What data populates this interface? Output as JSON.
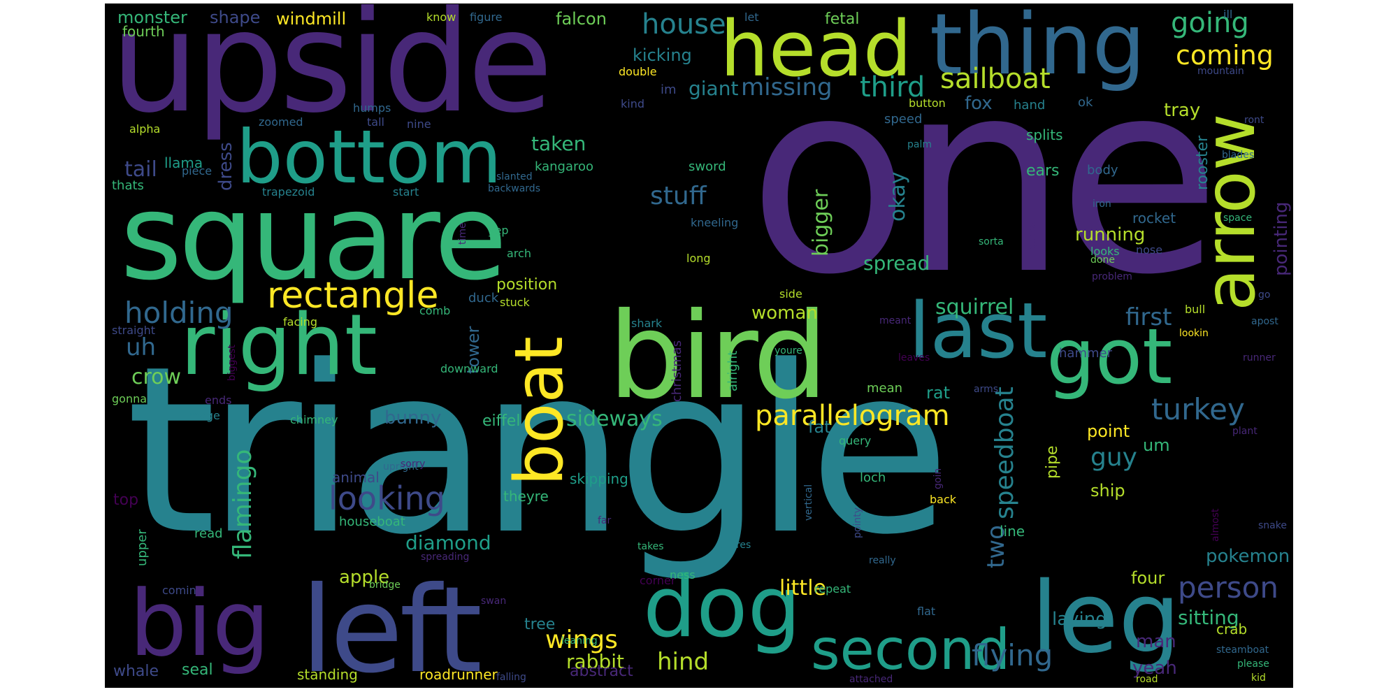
{
  "colors": {
    "background": "#000000",
    "page": "#ffffff",
    "palette": [
      "#440154",
      "#482878",
      "#3e4a89",
      "#31688e",
      "#26828e",
      "#1f9e89",
      "#35b779",
      "#6ece58",
      "#b5de2b",
      "#fde725"
    ]
  },
  "words": [
    {
      "text": "one",
      "color": "#482878"
    },
    {
      "text": "triangle",
      "color": "#26828e"
    },
    {
      "text": "upside",
      "color": "#482878"
    },
    {
      "text": "square",
      "color": "#35b779"
    },
    {
      "text": "head",
      "color": "#b5de2b"
    },
    {
      "text": "thing",
      "color": "#31688e"
    },
    {
      "text": "bird",
      "color": "#6ece58"
    },
    {
      "text": "bottom",
      "color": "#1f9e89"
    },
    {
      "text": "right",
      "color": "#35b779"
    },
    {
      "text": "left",
      "color": "#3e4a89"
    },
    {
      "text": "big",
      "color": "#482878"
    },
    {
      "text": "leg",
      "color": "#26828e"
    },
    {
      "text": "last",
      "color": "#26828e"
    },
    {
      "text": "got",
      "color": "#35b779"
    },
    {
      "text": "dog",
      "color": "#1f9e89"
    },
    {
      "text": "arrow",
      "color": "#b5de2b"
    },
    {
      "text": "boat",
      "color": "#fde725"
    },
    {
      "text": "second",
      "color": "#1f9e89"
    },
    {
      "text": "rectangle",
      "color": "#fde725"
    },
    {
      "text": "parallelogram",
      "color": "#fde725"
    },
    {
      "text": "house",
      "color": "#26828e"
    },
    {
      "text": "going",
      "color": "#35b779"
    },
    {
      "text": "coming",
      "color": "#fde725"
    },
    {
      "text": "sailboat",
      "color": "#b5de2b"
    },
    {
      "text": "third",
      "color": "#1f9e89"
    },
    {
      "text": "missing",
      "color": "#31688e"
    },
    {
      "text": "giant",
      "color": "#26828e"
    },
    {
      "text": "holding",
      "color": "#31688e"
    },
    {
      "text": "looking",
      "color": "#3e4a89"
    },
    {
      "text": "person",
      "color": "#3e4a89"
    },
    {
      "text": "turkey",
      "color": "#31688e"
    },
    {
      "text": "flying",
      "color": "#31688e"
    },
    {
      "text": "stuff",
      "color": "#31688e"
    },
    {
      "text": "first",
      "color": "#31688e"
    },
    {
      "text": "squirrel",
      "color": "#35b779"
    },
    {
      "text": "flamingo",
      "color": "#35b779"
    },
    {
      "text": "speedboat",
      "color": "#26828e"
    },
    {
      "text": "two",
      "color": "#31688e"
    },
    {
      "text": "wings",
      "color": "#fde725"
    },
    {
      "text": "hind",
      "color": "#b5de2b"
    },
    {
      "text": "guy",
      "color": "#26828e"
    },
    {
      "text": "crow",
      "color": "#6ece58"
    },
    {
      "text": "uh",
      "color": "#31688e"
    },
    {
      "text": "sideways",
      "color": "#35b779"
    },
    {
      "text": "okay",
      "color": "#26828e"
    },
    {
      "text": "bigger",
      "color": "#6ece58"
    },
    {
      "text": "taken",
      "color": "#35b779"
    },
    {
      "text": "tail",
      "color": "#3e4a89"
    },
    {
      "text": "spread",
      "color": "#35b779"
    },
    {
      "text": "running",
      "color": "#b5de2b"
    },
    {
      "text": "diamond",
      "color": "#1f9e89"
    },
    {
      "text": "little",
      "color": "#fde725"
    },
    {
      "text": "apple",
      "color": "#b5de2b"
    },
    {
      "text": "rabbit",
      "color": "#b5de2b"
    },
    {
      "text": "sitting",
      "color": "#35b779"
    },
    {
      "text": "laying",
      "color": "#26828e"
    },
    {
      "text": "bunny",
      "color": "#31688e"
    },
    {
      "text": "woman",
      "color": "#b5de2b"
    },
    {
      "text": "tower",
      "color": "#31688e"
    },
    {
      "text": "pokemon",
      "color": "#26828e"
    },
    {
      "text": "fox",
      "color": "#31688e"
    },
    {
      "text": "position",
      "color": "#b5de2b"
    },
    {
      "text": "dress",
      "color": "#3e4a89"
    },
    {
      "text": "kicking",
      "color": "#26828e"
    },
    {
      "text": "tray",
      "color": "#b5de2b"
    },
    {
      "text": "monster",
      "color": "#35b779"
    },
    {
      "text": "shape",
      "color": "#3e4a89"
    },
    {
      "text": "windmill",
      "color": "#fde725"
    },
    {
      "text": "falcon",
      "color": "#6ece58"
    },
    {
      "text": "fetal",
      "color": "#6ece58"
    },
    {
      "text": "pointing",
      "color": "#482878"
    },
    {
      "text": "rooster",
      "color": "#26828e"
    },
    {
      "text": "ears",
      "color": "#35b779"
    },
    {
      "text": "splits",
      "color": "#35b779"
    },
    {
      "text": "rocket",
      "color": "#31688e"
    },
    {
      "text": "eiffel",
      "color": "#35b779"
    },
    {
      "text": "rat",
      "color": "#1f9e89"
    },
    {
      "text": "fat",
      "color": "#26828e"
    },
    {
      "text": "ship",
      "color": "#b5de2b"
    },
    {
      "text": "point",
      "color": "#fde725"
    },
    {
      "text": "um",
      "color": "#35b779"
    },
    {
      "text": "pipe",
      "color": "#b5de2b"
    },
    {
      "text": "man",
      "color": "#482878"
    },
    {
      "text": "yeah",
      "color": "#482878"
    },
    {
      "text": "tree",
      "color": "#26828e"
    },
    {
      "text": "four",
      "color": "#b5de2b"
    },
    {
      "text": "whale",
      "color": "#3e4a89"
    },
    {
      "text": "seal",
      "color": "#35b779"
    },
    {
      "text": "abstract",
      "color": "#482878"
    },
    {
      "text": "standing",
      "color": "#b5de2b"
    },
    {
      "text": "roadrunner",
      "color": "#fde725"
    },
    {
      "text": "top",
      "color": "#440154"
    },
    {
      "text": "skipping",
      "color": "#1f9e89"
    },
    {
      "text": "theyre",
      "color": "#35b779"
    },
    {
      "text": "line",
      "color": "#35b779"
    },
    {
      "text": "animal",
      "color": "#3e4a89"
    },
    {
      "text": "houseboat",
      "color": "#35b779"
    },
    {
      "text": "kangaroo",
      "color": "#35b779"
    },
    {
      "text": "sword",
      "color": "#35b779"
    },
    {
      "text": "body",
      "color": "#31688e"
    },
    {
      "text": "duck",
      "color": "#31688e"
    },
    {
      "text": "crab",
      "color": "#b5de2b"
    },
    {
      "text": "loch",
      "color": "#35b779"
    },
    {
      "text": "hammer",
      "color": "#3e4a89"
    },
    {
      "text": "christmas",
      "color": "#482878"
    },
    {
      "text": "llama",
      "color": "#1f9e89"
    },
    {
      "text": "thats",
      "color": "#35b779"
    },
    {
      "text": "fourth",
      "color": "#6ece58"
    },
    {
      "text": "im",
      "color": "#3e4a89"
    },
    {
      "text": "hand",
      "color": "#26828e"
    },
    {
      "text": "speed",
      "color": "#31688e"
    },
    {
      "text": "mean",
      "color": "#6ece58"
    },
    {
      "text": "read",
      "color": "#35b779"
    },
    {
      "text": "upper",
      "color": "#35b779"
    },
    {
      "text": "repeat",
      "color": "#35b779"
    },
    {
      "text": "nine",
      "color": "#3e4a89"
    },
    {
      "text": "looks",
      "color": "#35b779"
    },
    {
      "text": "corner",
      "color": "#440154"
    },
    {
      "text": "facing",
      "color": "#b5de2b"
    },
    {
      "text": "alpha",
      "color": "#b5de2b"
    },
    {
      "text": "straight",
      "color": "#3e4a89"
    },
    {
      "text": "gonna",
      "color": "#6ece58"
    },
    {
      "text": "piece",
      "color": "#31688e"
    },
    {
      "text": "trapezoid",
      "color": "#26828e"
    },
    {
      "text": "start",
      "color": "#26828e"
    },
    {
      "text": "slanted",
      "color": "#31688e"
    },
    {
      "text": "backwards",
      "color": "#31688e"
    },
    {
      "text": "kneeling",
      "color": "#31688e"
    },
    {
      "text": "long",
      "color": "#b5de2b"
    },
    {
      "text": "arch",
      "color": "#35b779"
    },
    {
      "text": "yep",
      "color": "#35b779"
    },
    {
      "text": "stuck",
      "color": "#b5de2b"
    },
    {
      "text": "comb",
      "color": "#35b779"
    },
    {
      "text": "alright",
      "color": "#35b779"
    },
    {
      "text": "downward",
      "color": "#35b779"
    },
    {
      "text": "shark",
      "color": "#26828e"
    },
    {
      "text": "side",
      "color": "#b5de2b"
    },
    {
      "text": "chimney",
      "color": "#35b779"
    },
    {
      "text": "upright",
      "color": "#31688e"
    },
    {
      "text": "sorry",
      "color": "#482878"
    },
    {
      "text": "query",
      "color": "#35b779"
    },
    {
      "text": "ends",
      "color": "#482878"
    },
    {
      "text": "image",
      "color": "#26828e"
    },
    {
      "text": "biggest",
      "color": "#440154"
    },
    {
      "text": "zoomed",
      "color": "#31688e"
    },
    {
      "text": "humps",
      "color": "#31688e"
    },
    {
      "text": "tall",
      "color": "#3e4a89"
    },
    {
      "text": "know",
      "color": "#b5de2b"
    },
    {
      "text": "figure",
      "color": "#31688e"
    },
    {
      "text": "let",
      "color": "#31688e"
    },
    {
      "text": "ill",
      "color": "#31688e"
    },
    {
      "text": "double",
      "color": "#fde725"
    },
    {
      "text": "kind",
      "color": "#3e4a89"
    },
    {
      "text": "button",
      "color": "#b5de2b"
    },
    {
      "text": "ok",
      "color": "#31688e"
    },
    {
      "text": "mountain",
      "color": "#3e4a89"
    },
    {
      "text": "ront",
      "color": "#3e4a89"
    },
    {
      "text": "palm",
      "color": "#26828e"
    },
    {
      "text": "blades",
      "color": "#31688e"
    },
    {
      "text": "iron",
      "color": "#31688e"
    },
    {
      "text": "space",
      "color": "#35b779"
    },
    {
      "text": "sorta",
      "color": "#35b779"
    },
    {
      "text": "guess",
      "color": "#482878"
    },
    {
      "text": "done",
      "color": "#6ece58"
    },
    {
      "text": "nose",
      "color": "#3e4a89"
    },
    {
      "text": "go",
      "color": "#3e4a89"
    },
    {
      "text": "problem",
      "color": "#482878"
    },
    {
      "text": "time",
      "color": "#482878"
    },
    {
      "text": "bull",
      "color": "#b5de2b"
    },
    {
      "text": "apost",
      "color": "#31688e"
    },
    {
      "text": "lookin",
      "color": "#fde725"
    },
    {
      "text": "meant",
      "color": "#482878"
    },
    {
      "text": "runner",
      "color": "#482878"
    },
    {
      "text": "leaves",
      "color": "#440154"
    },
    {
      "text": "youre",
      "color": "#35b779"
    },
    {
      "text": "arms",
      "color": "#3e4a89"
    },
    {
      "text": "plant",
      "color": "#482878"
    },
    {
      "text": "back",
      "color": "#fde725"
    },
    {
      "text": "goin",
      "color": "#482878"
    },
    {
      "text": "vertical",
      "color": "#31688e"
    },
    {
      "text": "pointy",
      "color": "#3e4a89"
    },
    {
      "text": "almost",
      "color": "#440154"
    },
    {
      "text": "snake",
      "color": "#3e4a89"
    },
    {
      "text": "far",
      "color": "#482878"
    },
    {
      "text": "theres",
      "color": "#26828e"
    },
    {
      "text": "takes",
      "color": "#35b779"
    },
    {
      "text": "really",
      "color": "#31688e"
    },
    {
      "text": "ness",
      "color": "#35b779"
    },
    {
      "text": "spreading",
      "color": "#482878"
    },
    {
      "text": "swan",
      "color": "#482878"
    },
    {
      "text": "comin",
      "color": "#3e4a89"
    },
    {
      "text": "bridge",
      "color": "#6ece58"
    },
    {
      "text": "leaning",
      "color": "#35b779"
    },
    {
      "text": "falling",
      "color": "#3e4a89"
    },
    {
      "text": "flat",
      "color": "#31688e"
    },
    {
      "text": "attached",
      "color": "#482878"
    },
    {
      "text": "road",
      "color": "#b5de2b"
    },
    {
      "text": "kid",
      "color": "#b5de2b"
    },
    {
      "text": "steamboat",
      "color": "#31688e"
    },
    {
      "text": "please",
      "color": "#35b779"
    }
  ]
}
